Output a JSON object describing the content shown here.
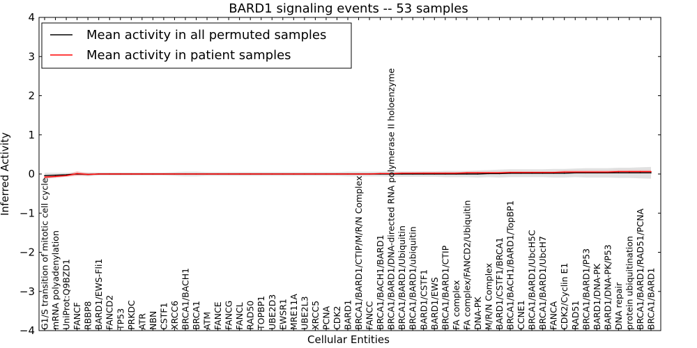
{
  "chart_data": {
    "type": "line",
    "title": "BARD1 signaling events -- 53 samples",
    "xlabel": "Cellular Entities",
    "ylabel": "Inferred Activity",
    "ylim": [
      -4,
      4
    ],
    "yticks": [
      -4,
      -3,
      -2,
      -1,
      0,
      1,
      2,
      3,
      4
    ],
    "ytick_labels": [
      "−4",
      "−3",
      "−2",
      "−1",
      "0",
      "1",
      "2",
      "3",
      "4"
    ],
    "legend_position": "top-left",
    "categories": [
      "G1/S transition of mitotic cell cycle",
      "mRNA polyadenylation",
      "UniProt:Q9BZD1",
      "FANCF",
      "RBBP8",
      "BARD1/EWS-Fli1",
      "FANCD2",
      "TP53",
      "PRKDC",
      "ATR",
      "NBN",
      "CSTF1",
      "XRCC6",
      "BRCA1/BACH1",
      "BRCA1",
      "ATM",
      "FANCE",
      "FANCG",
      "FANCL",
      "RAD50",
      "TOPBP1",
      "UBE2D3",
      "EWSR1",
      "MRE11A",
      "UBE2L3",
      "XRCC5",
      "PCNA",
      "CDK2",
      "BARD1",
      "BRCA1/BARD1/CTIP/M/R/N Complex",
      "FANCC",
      "BRCA1/BACH1/BARD1",
      "BRCA1/BARD1/DNA-directed RNA polymerase II holoenzyme",
      "BRCA1/BARD1/Ubiquitin",
      "BRCA1/BARD1/ubiquitin",
      "BARD1/CSTF1",
      "BARD1/EWS",
      "BRCA1/BARD1/CTIP",
      "FA complex",
      "FA complex/FANCD2/Ubiquitin",
      "DNA-PK",
      "M/R/N Complex",
      "BARD1/CSTF1/BRCA1",
      "BRCA1/BACH1/BARD1/TopBP1",
      "CCNE1",
      "BRCA1/BARD1/UbcH5C",
      "BRCA1/BARD1/UbcH7",
      "FANCA",
      "CDK2/Cyclin E1",
      "RAD51",
      "BRCA1/BARD1/P53",
      "BARD1/DNA-PK",
      "BARD1/DNA-PK/P53",
      "DNA repair",
      "protein ubiquitination",
      "BRCA1/BARD1/RAD51/PCNA",
      "BRCA1/BARD1"
    ],
    "series": [
      {
        "name": "Mean activity in all permuted samples",
        "color": "#000000",
        "band_color": "#c8c8c8",
        "values": [
          -0.04,
          -0.03,
          -0.02,
          0,
          -0.01,
          0,
          0,
          0,
          0,
          0,
          0,
          0,
          0,
          0,
          0,
          0,
          0,
          0,
          0,
          0,
          0,
          0,
          0,
          0,
          0,
          0,
          0,
          0,
          0,
          0,
          0,
          0,
          0,
          0,
          0,
          0,
          0,
          0,
          0,
          0,
          0,
          0.01,
          0.01,
          0.02,
          0.02,
          0.02,
          0.02,
          0.02,
          0.02,
          0.03,
          0.03,
          0.03,
          0.03,
          0.03,
          0.03,
          0.03,
          0.03
        ],
        "band": [
          0.07,
          0.06,
          0.05,
          0.04,
          0.05,
          0.04,
          0.04,
          0.04,
          0.04,
          0.04,
          0.04,
          0.04,
          0.05,
          0.06,
          0.06,
          0.05,
          0.05,
          0.05,
          0.05,
          0.05,
          0.05,
          0.05,
          0.05,
          0.05,
          0.05,
          0.05,
          0.05,
          0.05,
          0.06,
          0.06,
          0.06,
          0.06,
          0.07,
          0.07,
          0.07,
          0.07,
          0.07,
          0.08,
          0.08,
          0.08,
          0.09,
          0.09,
          0.1,
          0.1,
          0.1,
          0.1,
          0.1,
          0.11,
          0.11,
          0.11,
          0.12,
          0.12,
          0.12,
          0.13,
          0.13,
          0.14,
          0.15
        ]
      },
      {
        "name": "Mean activity in patient samples",
        "color": "#ff0000",
        "band_color": "#f4a0a0",
        "values": [
          -0.08,
          -0.06,
          -0.04,
          0.01,
          -0.01,
          0,
          0,
          0,
          0,
          0,
          0,
          0,
          0,
          0,
          0,
          0,
          0,
          0,
          0,
          0,
          0,
          0,
          0,
          0,
          0,
          0,
          0,
          0,
          0,
          0,
          0,
          0.01,
          0.01,
          0.02,
          0.02,
          0.02,
          0.02,
          0.02,
          0.02,
          0.03,
          0.03,
          0.03,
          0.03,
          0.04,
          0.04,
          0.04,
          0.04,
          0.04,
          0.05,
          0.05,
          0.05,
          0.05,
          0.05,
          0.06,
          0.06,
          0.06,
          0.06
        ],
        "band": [
          0.04,
          0.04,
          0.03,
          0.06,
          0.03,
          0.02,
          0.02,
          0.02,
          0.02,
          0.02,
          0.02,
          0.02,
          0.02,
          0.02,
          0.02,
          0.02,
          0.02,
          0.02,
          0.02,
          0.02,
          0.02,
          0.02,
          0.02,
          0.02,
          0.02,
          0.02,
          0.02,
          0.02,
          0.02,
          0.02,
          0.02,
          0.02,
          0.02,
          0.02,
          0.02,
          0.03,
          0.03,
          0.03,
          0.03,
          0.03,
          0.03,
          0.03,
          0.03,
          0.03,
          0.03,
          0.03,
          0.03,
          0.03,
          0.04,
          0.04,
          0.04,
          0.04,
          0.04,
          0.04,
          0.04,
          0.04,
          0.04
        ]
      }
    ]
  }
}
